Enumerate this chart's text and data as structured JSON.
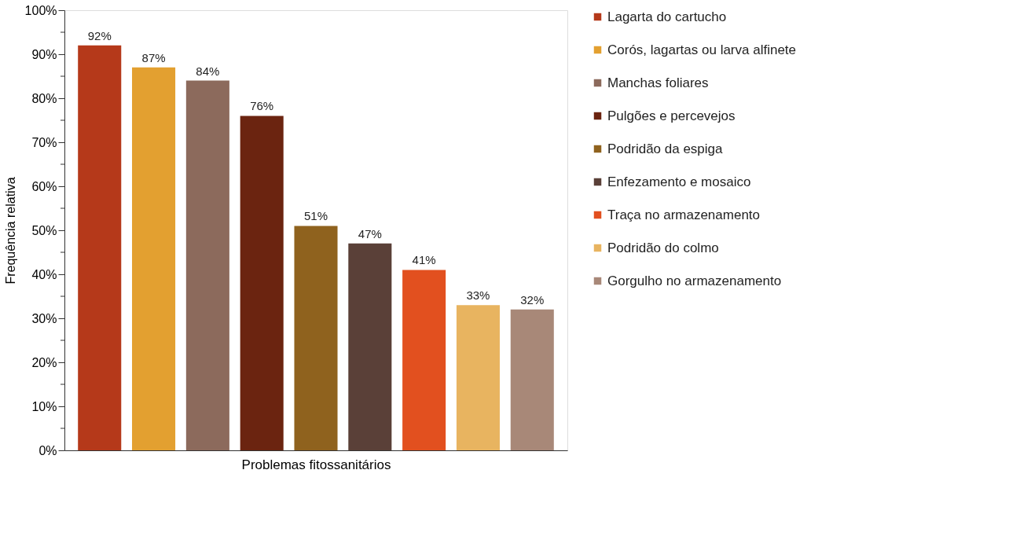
{
  "chart_data": {
    "type": "bar",
    "xlabel": "Problemas fitossanitários",
    "ylabel": "Frequência relativa",
    "categories": [
      null,
      null,
      null,
      null,
      null,
      null,
      null,
      null,
      null
    ],
    "series": [
      {
        "name": "Lagarta do cartucho",
        "color": "#b5391a",
        "values": [
          92,
          null,
          null,
          null,
          null,
          null,
          null,
          null,
          null
        ],
        "value_labels": [
          "92%",
          null,
          null,
          null,
          null,
          null,
          null,
          null,
          null
        ]
      },
      {
        "name": "Corós, lagartas ou larva alfinete",
        "color": "#e3a030",
        "values": [
          null,
          87,
          null,
          null,
          null,
          null,
          null,
          null,
          null
        ],
        "value_labels": [
          null,
          "87%",
          null,
          null,
          null,
          null,
          null,
          null,
          null
        ]
      },
      {
        "name": "Manchas foliares",
        "color": "#8c6a5c",
        "values": [
          null,
          null,
          84,
          null,
          null,
          null,
          null,
          null,
          null
        ],
        "value_labels": [
          null,
          null,
          "84%",
          null,
          null,
          null,
          null,
          null,
          null
        ]
      },
      {
        "name": "Pulgões e percevejos",
        "color": "#6b2410",
        "values": [
          null,
          null,
          null,
          76,
          null,
          null,
          null,
          null,
          null
        ],
        "value_labels": [
          null,
          null,
          null,
          "76%",
          null,
          null,
          null,
          null,
          null
        ]
      },
      {
        "name": "Podridão da espiga",
        "color": "#8f621e",
        "values": [
          null,
          null,
          null,
          null,
          51,
          null,
          null,
          null,
          null
        ],
        "value_labels": [
          null,
          null,
          null,
          null,
          "51%",
          null,
          null,
          null,
          null
        ]
      },
      {
        "name": "Enfezamento e mosaico",
        "color": "#5a4038",
        "values": [
          null,
          null,
          null,
          null,
          null,
          47,
          null,
          null,
          null
        ],
        "value_labels": [
          null,
          null,
          null,
          null,
          null,
          "47%",
          null,
          null,
          null
        ]
      },
      {
        "name": "Traça no armazenamento",
        "color": "#e2501f",
        "values": [
          null,
          null,
          null,
          null,
          null,
          null,
          41,
          null,
          null
        ],
        "value_labels": [
          null,
          null,
          null,
          null,
          null,
          null,
          "41%",
          null,
          null
        ]
      },
      {
        "name": "Podridão do colmo",
        "color": "#e8b460",
        "values": [
          null,
          null,
          null,
          null,
          null,
          null,
          null,
          33,
          null
        ],
        "value_labels": [
          null,
          null,
          null,
          null,
          null,
          null,
          null,
          "33%",
          null
        ]
      },
      {
        "name": "Gorgulho no armazenamento",
        "color": "#a88878",
        "values": [
          null,
          null,
          null,
          null,
          null,
          null,
          null,
          null,
          32
        ],
        "value_labels": [
          null,
          null,
          null,
          null,
          null,
          null,
          null,
          null,
          "32%"
        ]
      }
    ],
    "ylim": [
      0,
      100
    ],
    "yticks": [
      {
        "value": 0,
        "label": "0%"
      },
      {
        "value": 5,
        "label": null
      },
      {
        "value": 10,
        "label": "10%"
      },
      {
        "value": 15,
        "label": null
      },
      {
        "value": 20,
        "label": "20%"
      },
      {
        "value": 25,
        "label": null
      },
      {
        "value": 30,
        "label": "30%"
      },
      {
        "value": 35,
        "label": null
      },
      {
        "value": 40,
        "label": "40%"
      },
      {
        "value": 45,
        "label": null
      },
      {
        "value": 50,
        "label": "50%"
      },
      {
        "value": 55,
        "label": null
      },
      {
        "value": 60,
        "label": "60%"
      },
      {
        "value": 65,
        "label": null
      },
      {
        "value": 70,
        "label": "70%"
      },
      {
        "value": 75,
        "label": null
      },
      {
        "value": 80,
        "label": "80%"
      },
      {
        "value": 85,
        "label": null
      },
      {
        "value": 90,
        "label": "90%"
      },
      {
        "value": 95,
        "label": null
      },
      {
        "value": 100,
        "label": "100%"
      }
    ],
    "grid": false,
    "legend": "right",
    "tick_labels": "y"
  }
}
